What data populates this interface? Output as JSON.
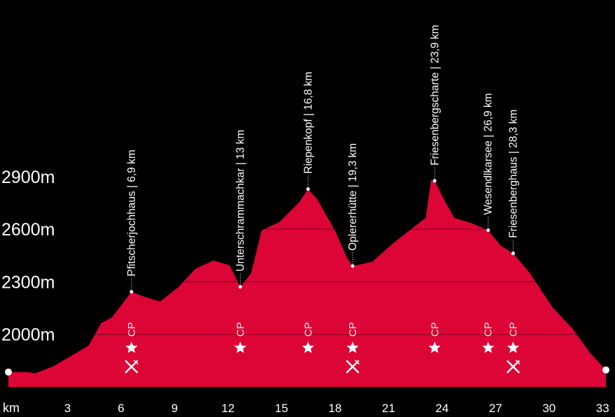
{
  "chart_data": {
    "type": "area",
    "color": "#dc0535",
    "background": "#000000",
    "x_label": "km",
    "x": [
      0,
      1,
      1.5,
      2.5,
      3.5,
      4.5,
      5.2,
      5.8,
      6.9,
      7.5,
      8.5,
      9.5,
      10.5,
      11.5,
      12.4,
      13,
      13.6,
      14.2,
      15.2,
      16.3,
      16.8,
      17.3,
      18.3,
      19,
      19.3,
      20.4,
      21.5,
      22.5,
      23.4,
      23.7,
      23.9,
      24.4,
      25,
      26,
      26.9,
      27.6,
      28.3,
      29.2,
      30.5,
      31.6,
      32.6,
      33.5
    ],
    "values": [
      1785,
      1785,
      1777,
      1817,
      1876,
      1936,
      2064,
      2096,
      2243,
      2219,
      2187,
      2267,
      2375,
      2422,
      2394,
      2271,
      2347,
      2594,
      2641,
      2753,
      2829,
      2773,
      2594,
      2434,
      2390,
      2414,
      2514,
      2594,
      2665,
      2880,
      2876,
      2773,
      2665,
      2633,
      2594,
      2506,
      2462,
      2355,
      2155,
      2036,
      1896,
      1797
    ],
    "xlim": [
      0,
      33.5
    ],
    "xticks": [
      3,
      6,
      9,
      12,
      15,
      18,
      21,
      24,
      27,
      30,
      33
    ],
    "ylim": [
      1700,
      3900
    ],
    "yticks": [
      {
        "value": 2000,
        "label": "2000m"
      },
      {
        "value": 2300,
        "label": "2300m"
      },
      {
        "value": 2600,
        "label": "2600m"
      },
      {
        "value": 2900,
        "label": "2900m"
      }
    ],
    "grid": true,
    "waypoints": [
      {
        "label": "Pfitscherjochhaus  |  6,9 km",
        "x": 6.9,
        "y": 2243,
        "cp": "CP",
        "food": true
      },
      {
        "label": "Unterschrammachkar  |  13 km",
        "x": 13,
        "y": 2271,
        "cp": "CP",
        "food": false
      },
      {
        "label": "Riepenkopf  |  16,8 km",
        "x": 16.8,
        "y": 2829,
        "cp": "CP",
        "food": false
      },
      {
        "label": "Oplererhütte  |  19,3 km",
        "x": 19.3,
        "y": 2390,
        "cp": "CP",
        "food": true
      },
      {
        "label": "Friesenbergscharte  |  23,9 km",
        "x": 23.9,
        "y": 2876,
        "cp": "CP",
        "food": false
      },
      {
        "label": "Wesendlkarsee  |  26,9 km",
        "x": 26.9,
        "y": 2594,
        "cp": "CP",
        "food": false
      },
      {
        "label": "Friesenberghaus  |  28,3 km",
        "x": 28.3,
        "y": 2462,
        "cp": "CP",
        "food": true
      }
    ]
  }
}
